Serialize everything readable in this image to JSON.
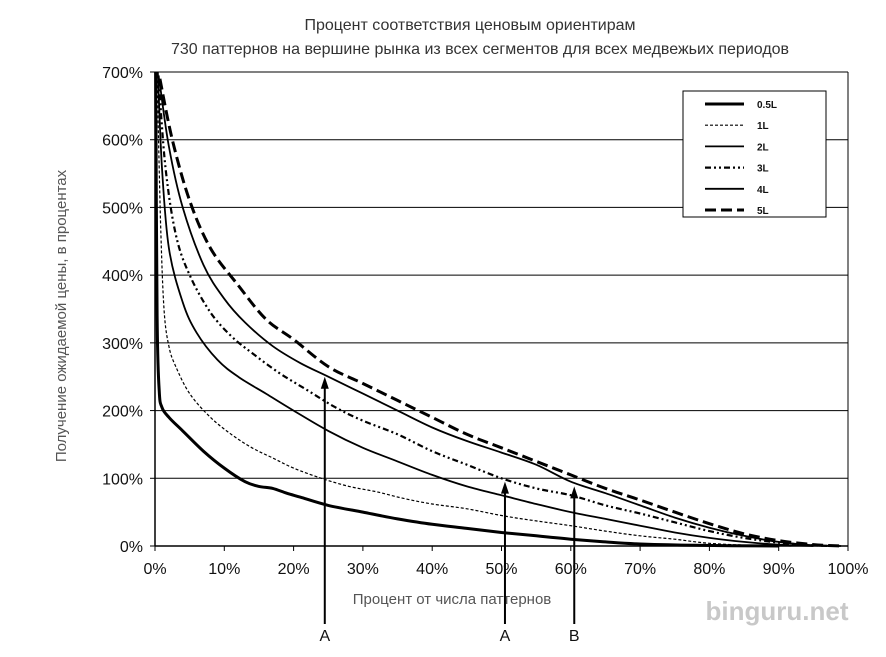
{
  "chart_data": {
    "type": "line",
    "title": "Процент соответствия ценовым ориентирам",
    "subtitle": "730 паттернов на вершине рынка из всех сегментов для всех медвежьих периодов",
    "xlabel": "Процент от числа паттернов",
    "ylabel": "Получение ожидаемой цены, в процентах",
    "xlim": [
      0,
      100
    ],
    "ylim": [
      0,
      700
    ],
    "x_ticks": [
      "0%",
      "10%",
      "20%",
      "30%",
      "40%",
      "50%",
      "60%",
      "70%",
      "80%",
      "90%",
      "100%"
    ],
    "y_ticks": [
      "0%",
      "100%",
      "200%",
      "300%",
      "400%",
      "500%",
      "600%",
      "700%"
    ],
    "grid": "horizontal",
    "legend_position": "top-right",
    "series": [
      {
        "name": "0.5L",
        "style": "solid-thick",
        "points": [
          [
            0.1,
            700
          ],
          [
            0.3,
            340
          ],
          [
            0.6,
            230
          ],
          [
            1,
            205
          ],
          [
            2,
            190
          ],
          [
            4,
            170
          ],
          [
            7,
            140
          ],
          [
            10,
            115
          ],
          [
            13,
            95
          ],
          [
            15,
            88
          ],
          [
            17,
            85
          ],
          [
            19,
            78
          ],
          [
            21,
            72
          ],
          [
            25,
            60
          ],
          [
            30,
            50
          ],
          [
            35,
            40
          ],
          [
            40,
            32
          ],
          [
            45,
            26
          ],
          [
            50,
            20
          ],
          [
            55,
            15
          ],
          [
            60,
            10
          ],
          [
            65,
            6
          ],
          [
            70,
            3
          ],
          [
            78,
            1
          ],
          [
            90,
            0
          ]
        ]
      },
      {
        "name": "1L",
        "style": "dashed-thin",
        "points": [
          [
            0.3,
            695
          ],
          [
            0.8,
            480
          ],
          [
            1.3,
            350
          ],
          [
            2,
            295
          ],
          [
            3,
            265
          ],
          [
            5,
            225
          ],
          [
            8,
            190
          ],
          [
            11,
            165
          ],
          [
            14,
            145
          ],
          [
            17,
            130
          ],
          [
            20,
            115
          ],
          [
            24,
            100
          ],
          [
            28,
            88
          ],
          [
            32,
            80
          ],
          [
            36,
            70
          ],
          [
            40,
            62
          ],
          [
            45,
            55
          ],
          [
            50,
            45
          ],
          [
            55,
            37
          ],
          [
            60,
            30
          ],
          [
            65,
            22
          ],
          [
            70,
            15
          ],
          [
            75,
            10
          ],
          [
            80,
            4
          ],
          [
            86,
            1
          ],
          [
            92,
            0
          ]
        ]
      },
      {
        "name": "2L",
        "style": "solid",
        "points": [
          [
            0.4,
            700
          ],
          [
            1,
            560
          ],
          [
            2,
            440
          ],
          [
            4,
            360
          ],
          [
            6,
            315
          ],
          [
            9,
            275
          ],
          [
            12,
            250
          ],
          [
            16,
            225
          ],
          [
            20,
            200
          ],
          [
            25,
            170
          ],
          [
            30,
            145
          ],
          [
            35,
            125
          ],
          [
            40,
            105
          ],
          [
            45,
            88
          ],
          [
            50,
            75
          ],
          [
            55,
            62
          ],
          [
            60,
            50
          ],
          [
            65,
            40
          ],
          [
            70,
            30
          ],
          [
            75,
            20
          ],
          [
            80,
            12
          ],
          [
            85,
            6
          ],
          [
            90,
            2
          ],
          [
            95,
            0
          ]
        ]
      },
      {
        "name": "3L",
        "style": "dash-dot-dot",
        "points": [
          [
            0.5,
            695
          ],
          [
            1.5,
            560
          ],
          [
            3,
            460
          ],
          [
            5,
            400
          ],
          [
            8,
            345
          ],
          [
            11,
            310
          ],
          [
            14,
            285
          ],
          [
            18,
            255
          ],
          [
            22,
            230
          ],
          [
            26,
            205
          ],
          [
            30,
            185
          ],
          [
            35,
            165
          ],
          [
            40,
            140
          ],
          [
            45,
            120
          ],
          [
            50,
            100
          ],
          [
            55,
            85
          ],
          [
            60,
            75
          ],
          [
            65,
            60
          ],
          [
            70,
            48
          ],
          [
            75,
            35
          ],
          [
            80,
            22
          ],
          [
            85,
            12
          ],
          [
            90,
            5
          ],
          [
            95,
            1
          ],
          [
            98,
            0
          ]
        ]
      },
      {
        "name": "4L",
        "style": "solid",
        "points": [
          [
            0.6,
            690
          ],
          [
            2,
            590
          ],
          [
            4,
            500
          ],
          [
            7,
            415
          ],
          [
            10,
            365
          ],
          [
            13,
            330
          ],
          [
            17,
            295
          ],
          [
            21,
            270
          ],
          [
            25,
            250
          ],
          [
            30,
            225
          ],
          [
            35,
            200
          ],
          [
            40,
            175
          ],
          [
            45,
            155
          ],
          [
            50,
            138
          ],
          [
            55,
            120
          ],
          [
            60,
            95
          ],
          [
            65,
            78
          ],
          [
            70,
            60
          ],
          [
            75,
            42
          ],
          [
            80,
            27
          ],
          [
            85,
            15
          ],
          [
            90,
            6
          ],
          [
            95,
            1
          ],
          [
            99,
            0
          ]
        ]
      },
      {
        "name": "5L",
        "style": "dashed-thick",
        "points": [
          [
            0.7,
            690
          ],
          [
            2.5,
            600
          ],
          [
            5,
            510
          ],
          [
            8,
            440
          ],
          [
            12,
            385
          ],
          [
            16,
            335
          ],
          [
            20,
            305
          ],
          [
            25,
            265
          ],
          [
            30,
            240
          ],
          [
            35,
            215
          ],
          [
            40,
            190
          ],
          [
            45,
            165
          ],
          [
            50,
            145
          ],
          [
            55,
            125
          ],
          [
            60,
            105
          ],
          [
            65,
            85
          ],
          [
            70,
            68
          ],
          [
            75,
            50
          ],
          [
            80,
            33
          ],
          [
            85,
            18
          ],
          [
            90,
            8
          ],
          [
            95,
            2
          ],
          [
            99,
            0
          ]
        ]
      }
    ],
    "markers": [
      {
        "label": "A",
        "x": 24.5,
        "y": 250
      },
      {
        "label": "A",
        "x": 50.5,
        "y": 95
      },
      {
        "label": "B",
        "x": 60.5,
        "y": 88
      }
    ]
  },
  "watermark": "binguru.net"
}
